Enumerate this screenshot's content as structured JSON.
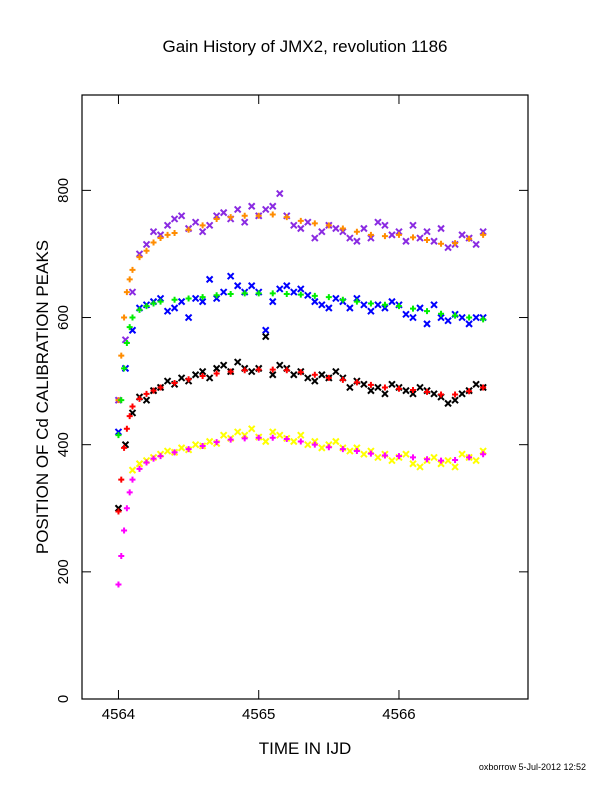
{
  "chart_data": {
    "type": "scatter",
    "title": "Gain History of JMX2, revolution 1186",
    "xlabel": "TIME IN IJD",
    "ylabel": "POSITION OF Cd CALIBRATION PEAKS",
    "xlim": [
      4563.74,
      4566.92
    ],
    "ylim": [
      0,
      950
    ],
    "x_ticks": [
      4564,
      4565,
      4566
    ],
    "y_ticks": [
      0,
      200,
      400,
      600,
      800
    ],
    "grid": false,
    "footer": "oxborrow  5-Jul-2012 12:52",
    "colors": {
      "purple": "#8a2be2",
      "orange": "#ff8c00",
      "blue": "#0000ff",
      "green": "#00ee00",
      "black": "#000000",
      "red": "#ff0000",
      "yellow": "#ffff00",
      "magenta": "#ff00ff"
    },
    "series": [
      {
        "color_key": "purple",
        "marker": "x",
        "x": [
          4564.0,
          4564.05,
          4564.1,
          4564.15,
          4564.2,
          4564.25,
          4564.3,
          4564.35,
          4564.4,
          4564.45,
          4564.5,
          4564.55,
          4564.6,
          4564.65,
          4564.7,
          4564.75,
          4564.8,
          4564.85,
          4564.9,
          4564.95,
          4565.0,
          4565.05,
          4565.1,
          4565.15,
          4565.2,
          4565.25,
          4565.3,
          4565.35,
          4565.4,
          4565.45,
          4565.5,
          4565.55,
          4565.6,
          4565.65,
          4565.7,
          4565.75,
          4565.8,
          4565.85,
          4565.9,
          4565.95,
          4566.0,
          4566.05,
          4566.1,
          4566.15,
          4566.2,
          4566.25,
          4566.3,
          4566.35,
          4566.4,
          4566.45,
          4566.5,
          4566.55,
          4566.6
        ],
        "y": [
          470,
          565,
          640,
          700,
          715,
          735,
          730,
          745,
          755,
          760,
          740,
          750,
          735,
          745,
          760,
          765,
          755,
          770,
          750,
          775,
          760,
          770,
          775,
          795,
          760,
          745,
          740,
          750,
          725,
          735,
          745,
          740,
          735,
          725,
          720,
          740,
          725,
          750,
          745,
          730,
          735,
          720,
          745,
          725,
          735,
          720,
          740,
          710,
          715,
          730,
          725,
          715,
          735
        ]
      },
      {
        "color_key": "orange",
        "marker": "+",
        "x": [
          4564.0,
          4564.02,
          4564.04,
          4564.06,
          4564.08,
          4564.1,
          4564.15,
          4564.2,
          4564.25,
          4564.3,
          4564.35,
          4564.4,
          4564.5,
          4564.6,
          4564.7,
          4564.8,
          4564.9,
          4565.0,
          4565.1,
          4565.2,
          4565.3,
          4565.4,
          4565.5,
          4565.6,
          4565.7,
          4565.8,
          4565.9,
          4566.0,
          4566.1,
          4566.2,
          4566.3,
          4566.4,
          4566.5,
          4566.6
        ],
        "y": [
          470,
          540,
          600,
          640,
          660,
          675,
          695,
          705,
          718,
          725,
          730,
          733,
          738,
          745,
          755,
          758,
          760,
          760,
          762,
          758,
          752,
          748,
          745,
          740,
          735,
          730,
          728,
          730,
          726,
          722,
          716,
          717,
          724,
          730
        ]
      },
      {
        "color_key": "blue",
        "marker": "x",
        "x": [
          4564.0,
          4564.05,
          4564.1,
          4564.15,
          4564.2,
          4564.25,
          4564.3,
          4564.35,
          4564.4,
          4564.45,
          4564.5,
          4564.55,
          4564.6,
          4564.65,
          4564.7,
          4564.75,
          4564.8,
          4564.85,
          4564.9,
          4564.95,
          4565.0,
          4565.05,
          4565.1,
          4565.15,
          4565.2,
          4565.25,
          4565.3,
          4565.35,
          4565.4,
          4565.45,
          4565.5,
          4565.55,
          4565.6,
          4565.65,
          4565.7,
          4565.75,
          4565.8,
          4565.85,
          4565.9,
          4565.95,
          4566.0,
          4566.05,
          4566.1,
          4566.15,
          4566.2,
          4566.25,
          4566.3,
          4566.35,
          4566.4,
          4566.45,
          4566.5,
          4566.55,
          4566.6
        ],
        "y": [
          420,
          520,
          580,
          615,
          620,
          625,
          630,
          610,
          615,
          625,
          600,
          630,
          625,
          660,
          630,
          640,
          665,
          650,
          640,
          650,
          640,
          580,
          625,
          645,
          650,
          640,
          645,
          635,
          625,
          620,
          615,
          630,
          625,
          615,
          630,
          620,
          610,
          620,
          615,
          625,
          620,
          605,
          600,
          615,
          590,
          620,
          600,
          595,
          605,
          600,
          590,
          600,
          600
        ]
      },
      {
        "color_key": "green",
        "marker": "+",
        "x": [
          4564.0,
          4564.02,
          4564.04,
          4564.06,
          4564.08,
          4564.1,
          4564.15,
          4564.2,
          4564.25,
          4564.3,
          4564.4,
          4564.5,
          4564.6,
          4564.7,
          4564.8,
          4564.9,
          4565.0,
          4565.1,
          4565.2,
          4565.3,
          4565.4,
          4565.5,
          4565.6,
          4565.7,
          4565.8,
          4565.9,
          4566.0,
          4566.1,
          4566.2,
          4566.3,
          4566.4,
          4566.5,
          4566.6
        ],
        "y": [
          415,
          470,
          520,
          560,
          585,
          600,
          612,
          618,
          622,
          625,
          628,
          630,
          632,
          635,
          637,
          638,
          638,
          638,
          637,
          636,
          634,
          632,
          628,
          625,
          622,
          620,
          618,
          614,
          610,
          606,
          603,
          600,
          597
        ]
      },
      {
        "color_key": "black",
        "marker": "x",
        "x": [
          4564.0,
          4564.05,
          4564.1,
          4564.15,
          4564.2,
          4564.25,
          4564.3,
          4564.35,
          4564.4,
          4564.45,
          4564.5,
          4564.55,
          4564.6,
          4564.65,
          4564.7,
          4564.75,
          4564.8,
          4564.85,
          4564.9,
          4564.95,
          4565.0,
          4565.05,
          4565.1,
          4565.15,
          4565.2,
          4565.25,
          4565.3,
          4565.35,
          4565.4,
          4565.45,
          4565.5,
          4565.55,
          4565.6,
          4565.65,
          4565.7,
          4565.75,
          4565.8,
          4565.85,
          4565.9,
          4565.95,
          4566.0,
          4566.05,
          4566.1,
          4566.15,
          4566.2,
          4566.25,
          4566.3,
          4566.35,
          4566.4,
          4566.45,
          4566.5,
          4566.55,
          4566.6
        ],
        "y": [
          300,
          400,
          450,
          475,
          470,
          485,
          490,
          500,
          495,
          505,
          500,
          510,
          515,
          505,
          520,
          525,
          515,
          530,
          520,
          515,
          520,
          570,
          510,
          525,
          520,
          510,
          515,
          505,
          500,
          510,
          505,
          515,
          505,
          490,
          500,
          495,
          485,
          490,
          480,
          495,
          490,
          485,
          480,
          490,
          485,
          480,
          475,
          465,
          470,
          480,
          485,
          495,
          490
        ]
      },
      {
        "color_key": "red",
        "marker": "+",
        "x": [
          4564.0,
          4564.02,
          4564.04,
          4564.06,
          4564.08,
          4564.1,
          4564.15,
          4564.2,
          4564.25,
          4564.3,
          4564.4,
          4564.5,
          4564.6,
          4564.7,
          4564.8,
          4564.9,
          4565.0,
          4565.1,
          4565.2,
          4565.3,
          4565.4,
          4565.5,
          4565.6,
          4565.7,
          4565.8,
          4565.9,
          4566.0,
          4566.1,
          4566.2,
          4566.3,
          4566.4,
          4566.5,
          4566.6
        ],
        "y": [
          295,
          345,
          395,
          425,
          445,
          460,
          472,
          480,
          485,
          490,
          497,
          503,
          508,
          512,
          515,
          517,
          518,
          518,
          517,
          514,
          510,
          505,
          502,
          498,
          494,
          490,
          488,
          486,
          483,
          479,
          479,
          484,
          490
        ]
      },
      {
        "color_key": "yellow",
        "marker": "x",
        "x": [
          4564.1,
          4564.15,
          4564.2,
          4564.25,
          4564.3,
          4564.35,
          4564.4,
          4564.45,
          4564.5,
          4564.55,
          4564.6,
          4564.65,
          4564.7,
          4564.75,
          4564.8,
          4564.85,
          4564.9,
          4564.95,
          4565.0,
          4565.05,
          4565.1,
          4565.15,
          4565.2,
          4565.25,
          4565.3,
          4565.35,
          4565.4,
          4565.45,
          4565.5,
          4565.55,
          4565.6,
          4565.65,
          4565.7,
          4565.75,
          4565.8,
          4565.85,
          4565.9,
          4565.95,
          4566.0,
          4566.05,
          4566.1,
          4566.15,
          4566.2,
          4566.25,
          4566.3,
          4566.35,
          4566.4,
          4566.45,
          4566.5,
          4566.55,
          4566.6
        ],
        "y": [
          360,
          370,
          375,
          380,
          385,
          390,
          388,
          395,
          392,
          400,
          398,
          405,
          402,
          415,
          410,
          420,
          415,
          425,
          412,
          405,
          420,
          415,
          410,
          405,
          415,
          400,
          405,
          395,
          400,
          405,
          395,
          390,
          395,
          385,
          390,
          380,
          385,
          375,
          380,
          385,
          370,
          365,
          375,
          380,
          370,
          375,
          365,
          385,
          380,
          375,
          390
        ]
      },
      {
        "color_key": "magenta",
        "marker": "+",
        "x": [
          4564.0,
          4564.02,
          4564.04,
          4564.06,
          4564.08,
          4564.1,
          4564.15,
          4564.2,
          4564.25,
          4564.3,
          4564.4,
          4564.5,
          4564.6,
          4564.7,
          4564.8,
          4564.9,
          4565.0,
          4565.1,
          4565.2,
          4565.3,
          4565.4,
          4565.5,
          4565.6,
          4565.7,
          4565.8,
          4565.9,
          4566.0,
          4566.1,
          4566.2,
          4566.3,
          4566.4,
          4566.5,
          4566.6
        ],
        "y": [
          180,
          225,
          265,
          300,
          325,
          345,
          362,
          372,
          378,
          382,
          388,
          393,
          398,
          404,
          408,
          410,
          411,
          411,
          409,
          405,
          400,
          396,
          393,
          390,
          386,
          383,
          382,
          380,
          377,
          375,
          376,
          380,
          385
        ]
      }
    ]
  }
}
